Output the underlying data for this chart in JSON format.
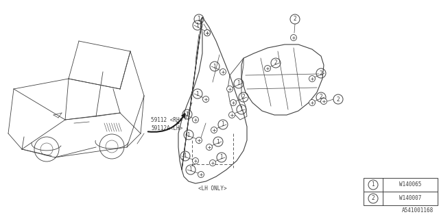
{
  "background_color": "#ffffff",
  "line_color": "#404040",
  "text_color": "#404040",
  "diagram_id": "A541001168",
  "part_label1": "59112 <RH>",
  "part_label2": "59112A<LH>",
  "lh_only_label": "<LH ONLY>",
  "legend": [
    {
      "num": "1",
      "code": "W140065"
    },
    {
      "num": "2",
      "code": "W140007"
    }
  ],
  "fig_width": 6.4,
  "fig_height": 3.2,
  "dpi": 100
}
